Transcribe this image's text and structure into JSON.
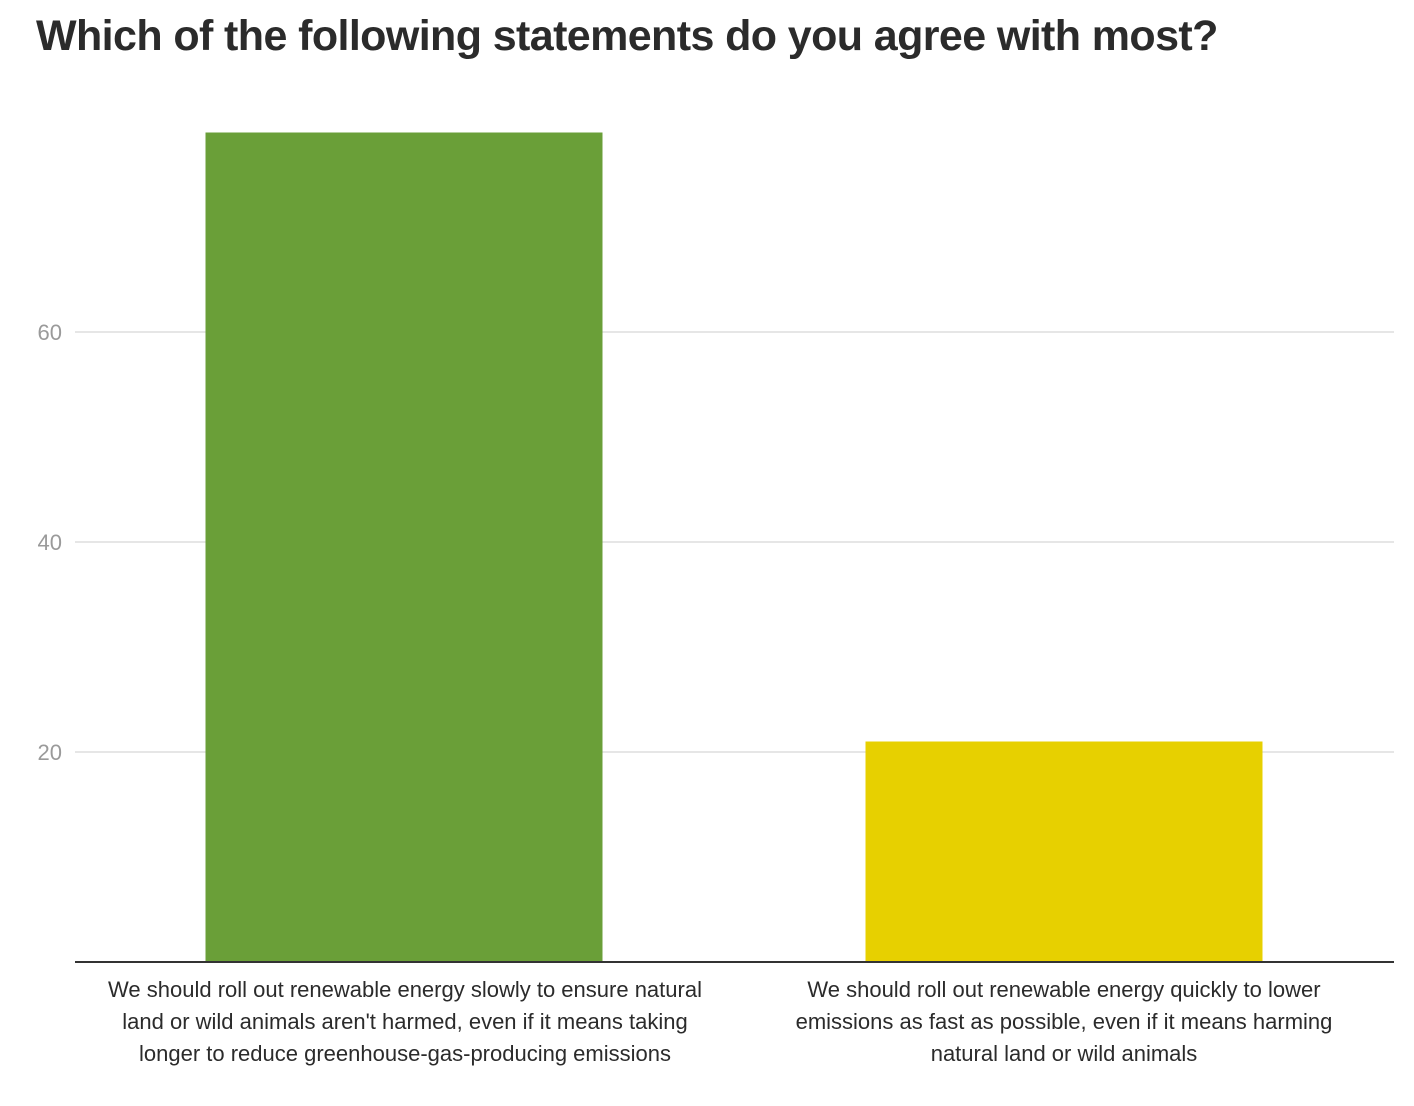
{
  "chart_data": {
    "type": "bar",
    "title": "Which of the following statements do you agree with most?",
    "categories": [
      "We should roll out renewable energy slowly to ensure natural land or wild animals aren't harmed, even if it means taking longer to reduce greenhouse-gas-producing emissions",
      "We should roll out renewable energy quickly to lower emissions as fast as possible, even if it means harming natural land or wild animals"
    ],
    "values": [
      79,
      21
    ],
    "colors": [
      "#6a9f38",
      "#e7d000"
    ],
    "yticks": [
      20,
      40,
      60
    ],
    "ylim": [
      0,
      80
    ],
    "xlabel": "",
    "ylabel": "",
    "grid": true,
    "legend": "none"
  }
}
